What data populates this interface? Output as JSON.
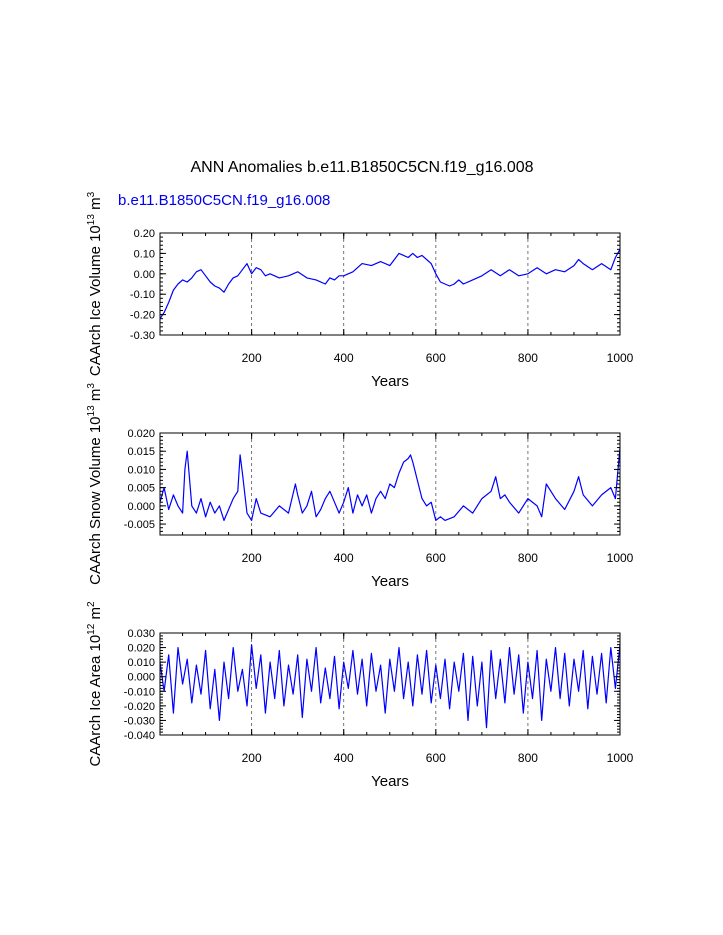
{
  "title": "ANN Anomalies b.e11.B1850C5CN.f19_g16.008",
  "subtitle": "b.e11.B1850C5CN.f19_g16.008",
  "colors": {
    "series": "#0000ff",
    "subtitle": "#0000ee",
    "axes": "#000000",
    "grid": "#555555"
  },
  "chart_data": [
    {
      "type": "line",
      "ylabel_main": "CAArch Ice Volume 10",
      "ylabel_exp": "13",
      "ylabel_unit": " m",
      "ylabel_unit_exp": "3",
      "xlabel": "Years",
      "xlim": [
        1,
        1000
      ],
      "ylim": [
        -0.3,
        0.2
      ],
      "xticks": [
        200,
        400,
        600,
        800,
        1000
      ],
      "yticks": [
        -0.3,
        -0.2,
        -0.1,
        0.0,
        0.1,
        0.2
      ],
      "ytick_labels": [
        "-0.30",
        "-0.20",
        "-0.10",
        "0.00",
        "0.10",
        "0.20"
      ],
      "grid": "vertical dashed at 200, 400, 600, 800",
      "series": [
        {
          "name": "CAArch Ice Volume",
          "x": [
            1,
            10,
            20,
            30,
            40,
            50,
            60,
            70,
            80,
            90,
            100,
            110,
            120,
            130,
            140,
            150,
            160,
            170,
            180,
            190,
            200,
            210,
            220,
            230,
            240,
            260,
            280,
            300,
            320,
            340,
            360,
            370,
            380,
            390,
            400,
            420,
            440,
            460,
            480,
            500,
            510,
            520,
            530,
            540,
            550,
            560,
            570,
            580,
            590,
            600,
            610,
            620,
            630,
            640,
            650,
            660,
            680,
            700,
            720,
            740,
            760,
            780,
            800,
            820,
            840,
            860,
            880,
            900,
            910,
            920,
            940,
            960,
            980,
            990,
            1000
          ],
          "values": [
            -0.22,
            -0.19,
            -0.14,
            -0.08,
            -0.05,
            -0.03,
            -0.04,
            -0.02,
            0.01,
            0.02,
            -0.01,
            -0.04,
            -0.06,
            -0.07,
            -0.09,
            -0.05,
            -0.02,
            -0.01,
            0.02,
            0.05,
            0.0,
            0.03,
            0.02,
            -0.01,
            0.0,
            -0.02,
            -0.01,
            0.01,
            -0.02,
            -0.03,
            -0.05,
            -0.02,
            -0.03,
            -0.01,
            -0.01,
            0.01,
            0.05,
            0.04,
            0.06,
            0.04,
            0.07,
            0.1,
            0.09,
            0.08,
            0.1,
            0.08,
            0.09,
            0.07,
            0.05,
            0.0,
            -0.04,
            -0.05,
            -0.06,
            -0.05,
            -0.03,
            -0.05,
            -0.03,
            -0.01,
            0.02,
            -0.01,
            0.02,
            -0.01,
            0.0,
            0.03,
            0.0,
            0.02,
            0.01,
            0.04,
            0.07,
            0.05,
            0.02,
            0.05,
            0.02,
            0.08,
            0.12
          ]
        }
      ]
    },
    {
      "type": "line",
      "ylabel_main": "CAArch Snow Volume 10",
      "ylabel_exp": "13",
      "ylabel_unit": " m",
      "ylabel_unit_exp": "3",
      "xlabel": "Years",
      "xlim": [
        1,
        1000
      ],
      "ylim": [
        -0.008,
        0.02
      ],
      "xticks": [
        200,
        400,
        600,
        800,
        1000
      ],
      "yticks": [
        -0.005,
        0.0,
        0.005,
        0.01,
        0.015,
        0.02
      ],
      "ytick_labels": [
        "-0.005",
        "0.000",
        "0.005",
        "0.010",
        "0.015",
        "0.020"
      ],
      "grid": "vertical dashed at 200, 400, 600, 800",
      "series": [
        {
          "name": "CAArch Snow Volume",
          "x": [
            1,
            10,
            20,
            30,
            40,
            50,
            55,
            60,
            70,
            80,
            90,
            100,
            110,
            120,
            130,
            140,
            150,
            160,
            170,
            175,
            180,
            190,
            200,
            210,
            220,
            240,
            260,
            280,
            295,
            300,
            310,
            320,
            330,
            340,
            350,
            360,
            370,
            380,
            390,
            400,
            410,
            420,
            430,
            440,
            450,
            460,
            470,
            480,
            490,
            500,
            510,
            520,
            530,
            540,
            545,
            550,
            560,
            570,
            580,
            590,
            600,
            610,
            620,
            640,
            660,
            680,
            700,
            720,
            730,
            740,
            750,
            760,
            780,
            800,
            820,
            830,
            840,
            860,
            880,
            900,
            910,
            920,
            940,
            960,
            980,
            990,
            1000
          ],
          "values": [
            0.001,
            0.005,
            -0.001,
            0.003,
            0.0,
            -0.002,
            0.01,
            0.015,
            0.0,
            -0.002,
            0.002,
            -0.003,
            0.001,
            -0.002,
            0.0,
            -0.004,
            -0.001,
            0.002,
            0.004,
            0.014,
            0.009,
            -0.002,
            -0.004,
            0.002,
            -0.002,
            -0.003,
            0.0,
            -0.002,
            0.006,
            0.003,
            -0.002,
            0.0,
            0.004,
            -0.003,
            -0.001,
            0.002,
            0.004,
            0.001,
            -0.002,
            0.001,
            0.005,
            -0.002,
            0.003,
            0.0,
            0.003,
            -0.002,
            0.002,
            0.004,
            0.002,
            0.006,
            0.005,
            0.009,
            0.012,
            0.013,
            0.014,
            0.012,
            0.007,
            0.002,
            0.0,
            0.001,
            -0.004,
            -0.003,
            -0.004,
            -0.003,
            0.0,
            -0.002,
            0.002,
            0.004,
            0.008,
            0.002,
            0.003,
            0.001,
            -0.002,
            0.002,
            0.0,
            -0.003,
            0.006,
            0.002,
            -0.001,
            0.004,
            0.008,
            0.003,
            0.0,
            0.003,
            0.005,
            0.002,
            0.016
          ]
        }
      ]
    },
    {
      "type": "line",
      "ylabel_main": "CAArch Ice Area 10",
      "ylabel_exp": "12",
      "ylabel_unit": " m",
      "ylabel_unit_exp": "2",
      "xlabel": "Years",
      "xlim": [
        1,
        1000
      ],
      "ylim": [
        -0.04,
        0.03
      ],
      "xticks": [
        200,
        400,
        600,
        800,
        1000
      ],
      "yticks": [
        -0.04,
        -0.03,
        -0.02,
        -0.01,
        0.0,
        0.01,
        0.02,
        0.03
      ],
      "ytick_labels": [
        "-0.040",
        "-0.030",
        "-0.020",
        "-0.010",
        "0.000",
        "0.010",
        "0.020",
        "0.030"
      ],
      "grid": "vertical dashed at 200, 400, 600, 800",
      "series": [
        {
          "name": "CAArch Ice Area",
          "x": [
            1,
            10,
            20,
            30,
            40,
            50,
            60,
            70,
            80,
            90,
            100,
            110,
            120,
            130,
            140,
            150,
            160,
            170,
            180,
            190,
            200,
            210,
            220,
            230,
            240,
            250,
            260,
            270,
            280,
            290,
            300,
            310,
            320,
            330,
            340,
            350,
            360,
            370,
            380,
            390,
            400,
            410,
            420,
            430,
            440,
            450,
            460,
            470,
            480,
            490,
            500,
            510,
            520,
            530,
            540,
            550,
            560,
            570,
            580,
            590,
            600,
            610,
            620,
            630,
            640,
            650,
            660,
            670,
            680,
            690,
            700,
            710,
            720,
            730,
            740,
            750,
            760,
            770,
            780,
            790,
            800,
            810,
            820,
            830,
            840,
            850,
            860,
            870,
            880,
            890,
            900,
            910,
            920,
            930,
            940,
            950,
            960,
            970,
            980,
            990,
            1000
          ],
          "values": [
            0.01,
            -0.01,
            0.015,
            -0.025,
            0.02,
            -0.005,
            0.012,
            -0.018,
            0.008,
            -0.012,
            0.018,
            -0.022,
            0.005,
            -0.03,
            0.01,
            -0.015,
            0.02,
            -0.01,
            0.005,
            -0.02,
            0.022,
            -0.008,
            0.015,
            -0.025,
            0.01,
            -0.015,
            0.018,
            -0.02,
            0.008,
            -0.012,
            0.015,
            -0.028,
            0.012,
            -0.01,
            0.02,
            -0.018,
            0.006,
            -0.015,
            0.014,
            -0.022,
            0.01,
            -0.008,
            0.018,
            -0.012,
            0.012,
            -0.02,
            0.016,
            -0.01,
            0.008,
            -0.025,
            0.012,
            -0.01,
            0.02,
            -0.015,
            0.01,
            -0.02,
            0.015,
            -0.012,
            0.018,
            -0.018,
            0.008,
            -0.015,
            0.012,
            -0.022,
            0.01,
            -0.01,
            0.016,
            -0.03,
            0.014,
            -0.02,
            0.01,
            -0.035,
            0.018,
            -0.015,
            0.012,
            -0.018,
            0.02,
            -0.012,
            0.015,
            -0.025,
            0.01,
            -0.015,
            0.018,
            -0.03,
            0.012,
            -0.01,
            0.02,
            -0.015,
            0.016,
            -0.02,
            0.012,
            -0.01,
            0.018,
            -0.022,
            0.014,
            -0.012,
            0.016,
            -0.018,
            0.02,
            -0.008,
            0.022
          ]
        }
      ]
    }
  ]
}
